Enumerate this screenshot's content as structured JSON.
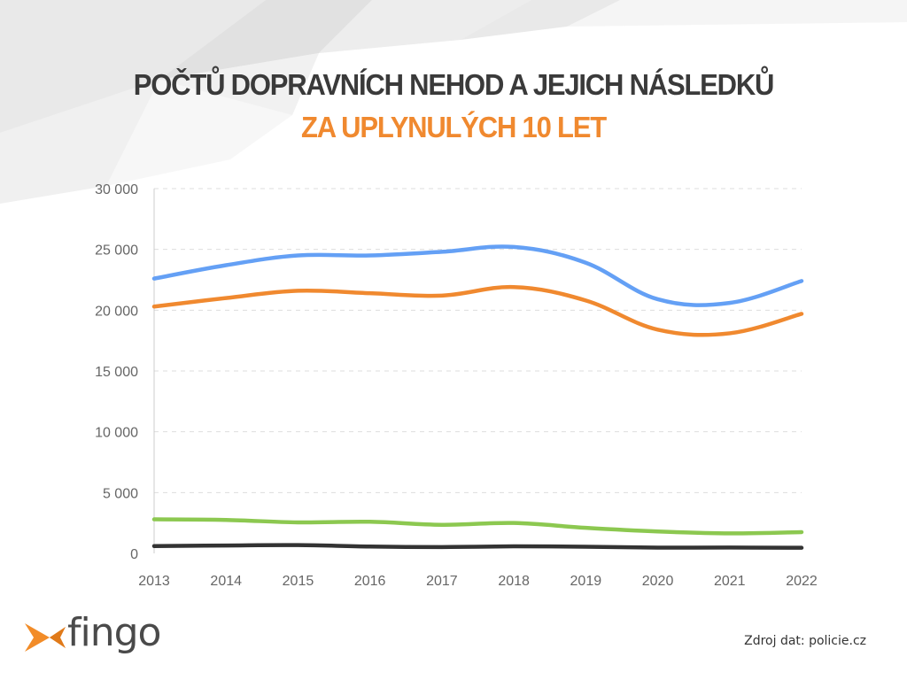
{
  "title": {
    "line1": "POČTŮ DOPRAVNÍCH NEHOD A JEJICH NÁSLEDKŮ",
    "line2": "ZA UPLYNULÝCH 10 LET"
  },
  "colors": {
    "title_dark": "#3a3a3a",
    "accent_orange": "#f0892f",
    "logo_orange": "#f28c28",
    "logo_gray": "#4a4a4a"
  },
  "logo": {
    "text": "fingo",
    "icon": "fish-logo-icon"
  },
  "source": "Zdroj dat: policie.cz",
  "chart_data": {
    "type": "line",
    "title": "POČTŮ DOPRAVNÍCH NEHOD A JEJICH NÁSLEDKŮ ZA UPLYNULÝCH 10 LET",
    "xlabel": "",
    "ylabel": "",
    "categories": [
      "2013",
      "2014",
      "2015",
      "2016",
      "2017",
      "2018",
      "2019",
      "2020",
      "2021",
      "2022"
    ],
    "ylim": [
      0,
      30000
    ],
    "y_ticks": [
      0,
      5000,
      10000,
      15000,
      20000,
      25000,
      30000
    ],
    "y_tick_labels": [
      "0",
      "5 000",
      "10 000",
      "15 000",
      "20 000",
      "25 000",
      "30 000"
    ],
    "grid": true,
    "legend": "none",
    "series": [
      {
        "color": "#64a0f5",
        "values": [
          22600,
          23700,
          24500,
          24500,
          24800,
          25200,
          23900,
          20900,
          20600,
          22400
        ]
      },
      {
        "color": "#f0892f",
        "values": [
          20300,
          21000,
          21600,
          21400,
          21200,
          21900,
          20800,
          18400,
          18100,
          19700
        ]
      },
      {
        "color": "#8cc850",
        "values": [
          2800,
          2750,
          2550,
          2600,
          2350,
          2500,
          2100,
          1800,
          1650,
          1750
        ]
      },
      {
        "color": "#333333",
        "values": [
          600,
          650,
          680,
          560,
          520,
          580,
          550,
          470,
          480,
          460
        ]
      }
    ]
  }
}
